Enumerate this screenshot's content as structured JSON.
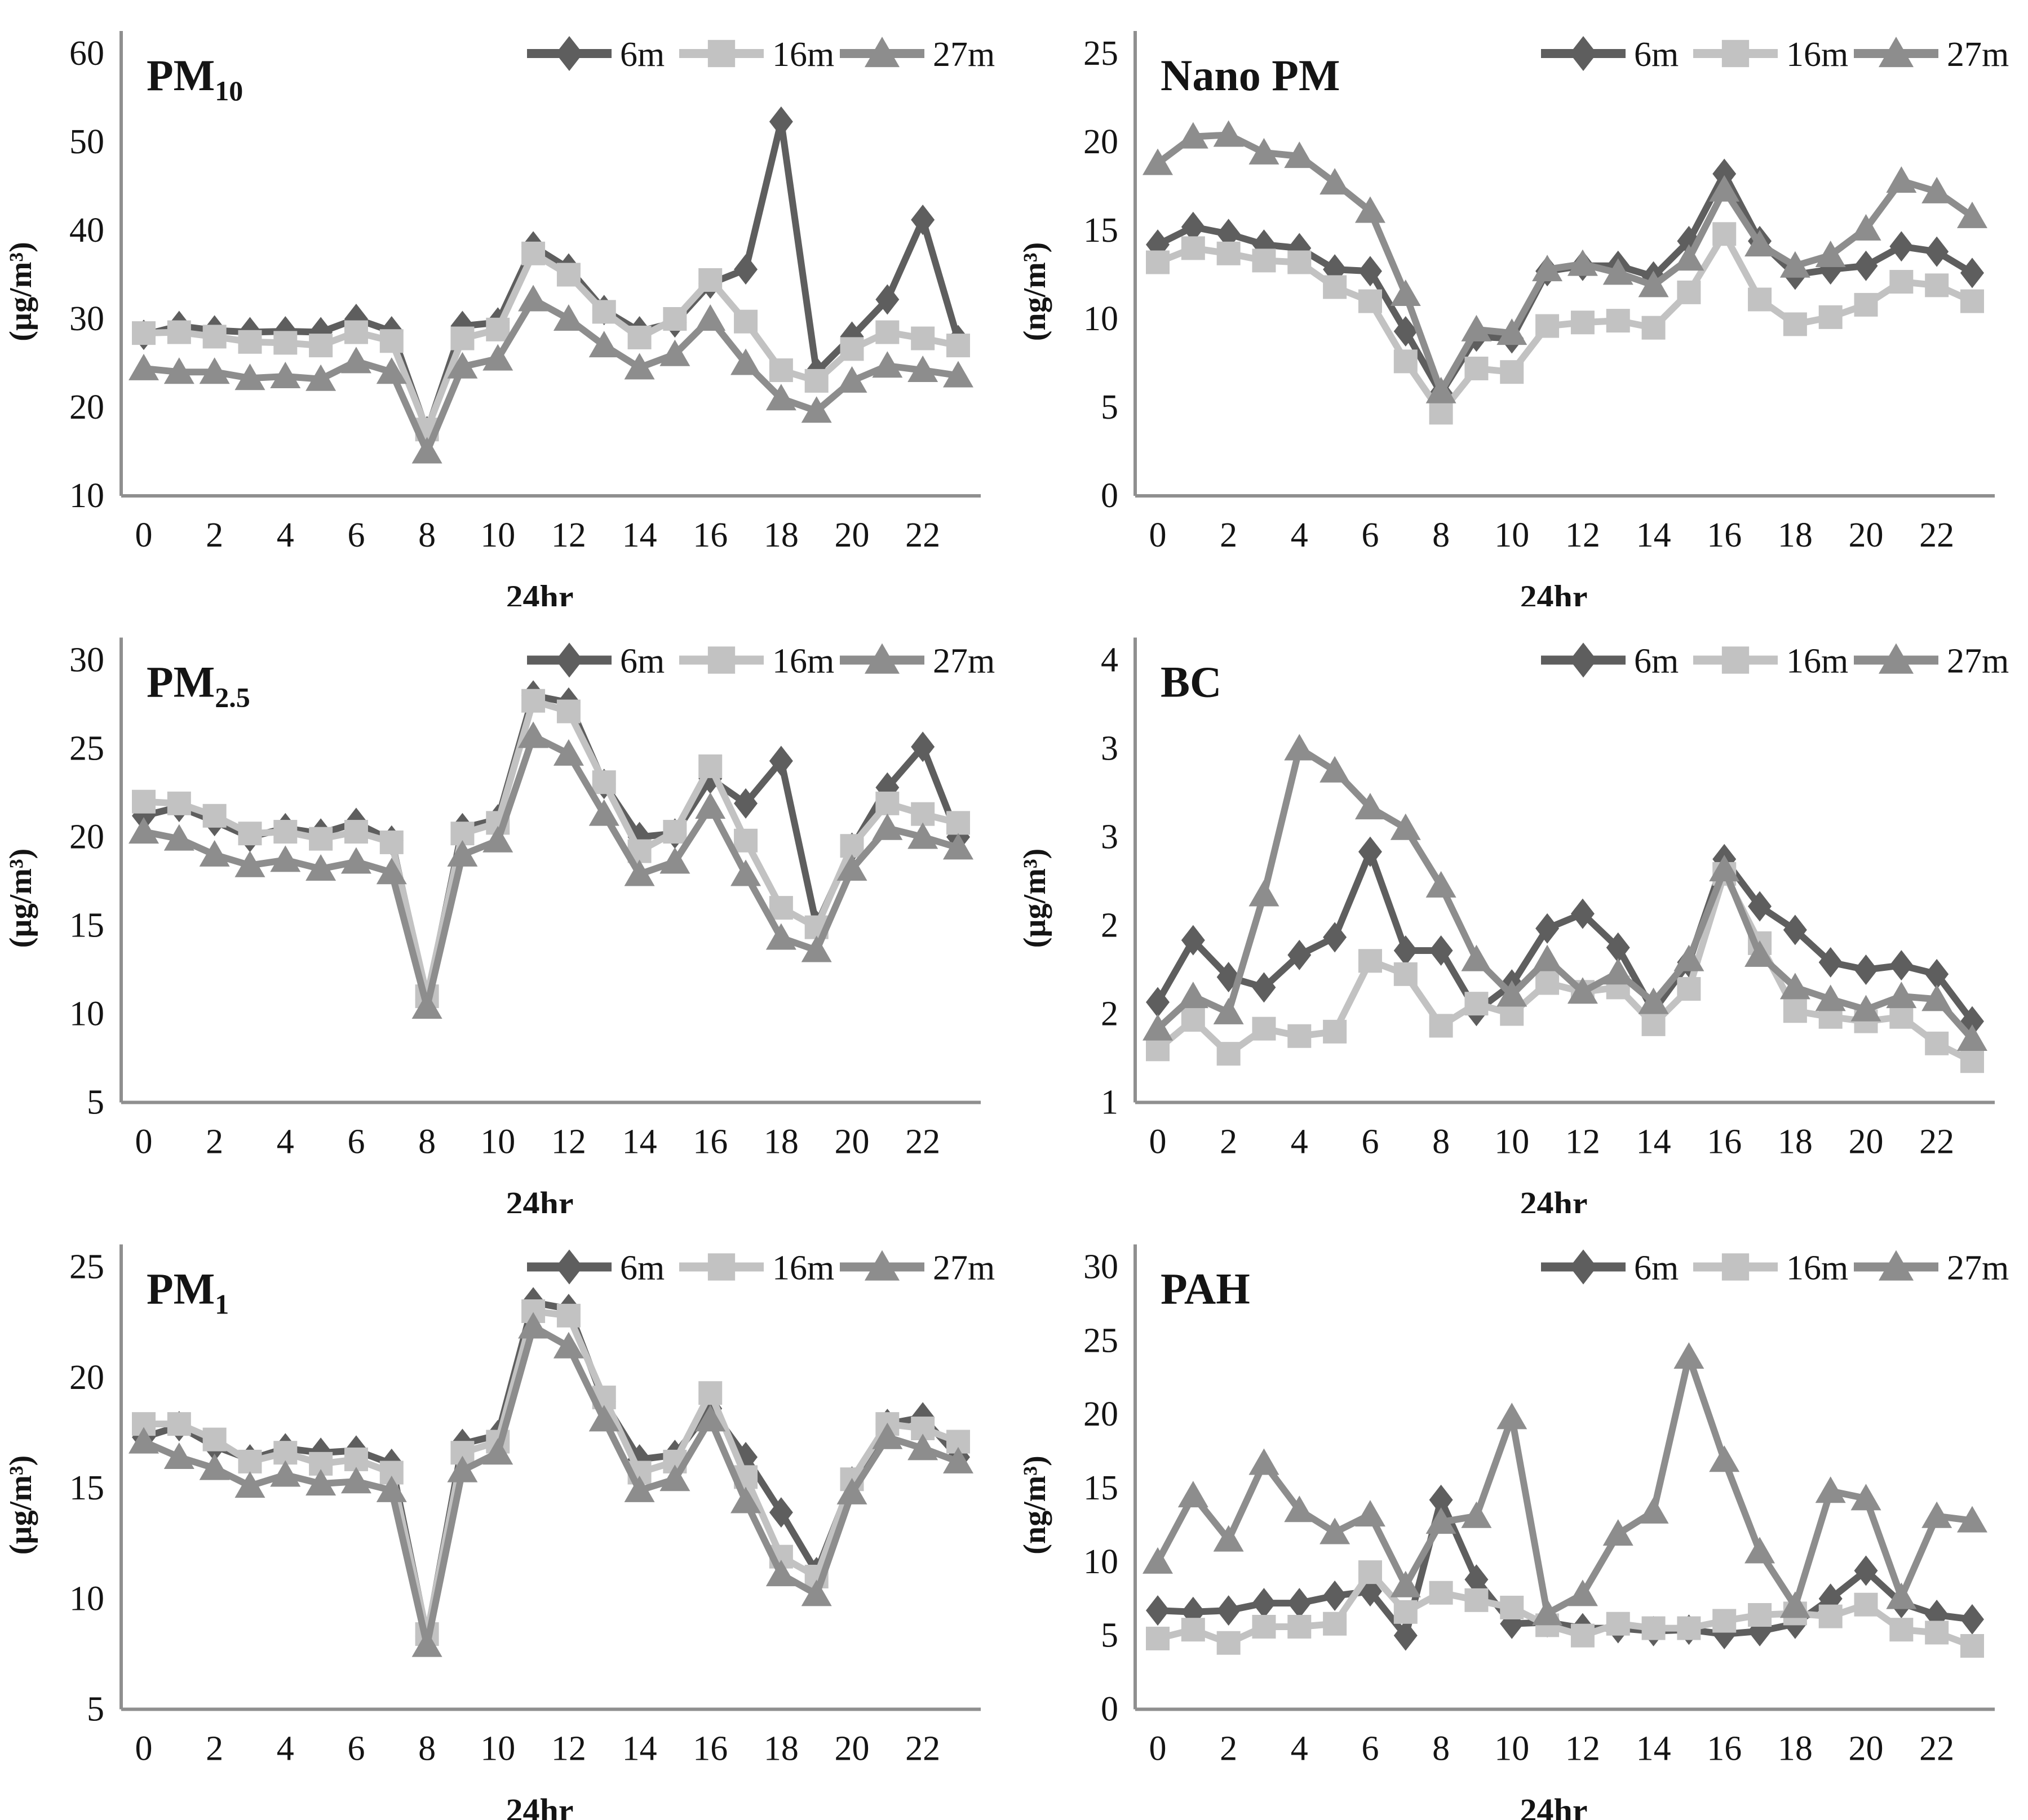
{
  "figure": {
    "background": "#ffffff",
    "axis_color": "#8f8f8f",
    "text_color": "#141414",
    "series_colors": {
      "6m": "#5e5e5e",
      "16m": "#c2c2c2",
      "27m": "#8d8d8d"
    }
  },
  "chart_data": [
    {
      "type": "line",
      "title": "PM",
      "title_sub": "10",
      "ylabel": "(µg/m³)",
      "xlabel": "24hr",
      "ylim": [
        10,
        60
      ],
      "grid": false,
      "legend_position": "top-right",
      "yticks": [
        {
          "v": 60,
          "t": "60"
        },
        {
          "v": 50,
          "t": "50"
        },
        {
          "v": 40,
          "t": "40"
        },
        {
          "v": 30,
          "t": "30"
        },
        {
          "v": 20,
          "t": "20"
        },
        {
          "v": 10,
          "t": "10"
        }
      ],
      "xticks": [
        0,
        2,
        4,
        6,
        8,
        10,
        12,
        14,
        16,
        18,
        20,
        22
      ],
      "x": [
        0,
        1,
        2,
        3,
        4,
        5,
        6,
        7,
        8,
        9,
        10,
        11,
        12,
        13,
        14,
        15,
        16,
        17,
        18,
        19,
        20,
        21,
        22,
        23
      ],
      "series": [
        {
          "name": "6m",
          "marker": "diamond",
          "color": "#5e5e5e",
          "values": [
            28.2,
            29.2,
            28.7,
            28.5,
            28.6,
            28.5,
            30.0,
            28.6,
            17.3,
            29.2,
            29.6,
            38.2,
            35.7,
            31.0,
            28.6,
            29.6,
            34.0,
            35.6,
            52.3,
            24.0,
            28.0,
            32.2,
            41.2,
            27.6
          ]
        },
        {
          "name": "16m",
          "marker": "square",
          "color": "#c2c2c2",
          "values": [
            28.4,
            28.5,
            28.0,
            27.4,
            27.3,
            27.0,
            28.5,
            27.5,
            17.5,
            27.8,
            28.8,
            37.4,
            35.0,
            30.8,
            27.9,
            30.0,
            34.4,
            29.7,
            24.2,
            23.0,
            26.6,
            28.5,
            27.8,
            27.0
          ]
        },
        {
          "name": "27m",
          "marker": "triangle",
          "color": "#8d8d8d",
          "values": [
            24.4,
            24.0,
            24.0,
            23.3,
            23.5,
            23.2,
            25.2,
            24.0,
            15.0,
            24.6,
            25.5,
            32.2,
            30.0,
            27.0,
            24.5,
            26.0,
            30.0,
            25.0,
            21.0,
            19.6,
            23.0,
            24.7,
            24.2,
            23.6
          ]
        }
      ]
    },
    {
      "type": "line",
      "title": "Nano PM",
      "title_sub": "",
      "ylabel": "(ng/m³)",
      "xlabel": "24hr",
      "ylim": [
        0,
        25
      ],
      "grid": false,
      "legend_position": "top-right",
      "yticks": [
        {
          "v": 25,
          "t": "25"
        },
        {
          "v": 20,
          "t": "20"
        },
        {
          "v": 15,
          "t": "15"
        },
        {
          "v": 10,
          "t": "10"
        },
        {
          "v": 5,
          "t": "5"
        },
        {
          "v": 0,
          "t": "0"
        }
      ],
      "xticks": [
        0,
        2,
        4,
        6,
        8,
        10,
        12,
        14,
        16,
        18,
        20,
        22
      ],
      "x": [
        0,
        1,
        2,
        3,
        4,
        5,
        6,
        7,
        8,
        9,
        10,
        11,
        12,
        13,
        14,
        15,
        16,
        17,
        18,
        19,
        20,
        21,
        22,
        23
      ],
      "series": [
        {
          "name": "6m",
          "marker": "diamond",
          "color": "#5e5e5e",
          "values": [
            14.2,
            15.2,
            14.8,
            14.2,
            14.0,
            12.8,
            12.7,
            9.3,
            5.8,
            9.0,
            8.9,
            12.7,
            13.0,
            13.0,
            12.4,
            14.4,
            18.2,
            14.4,
            12.5,
            12.8,
            13.0,
            14.1,
            13.8,
            12.6
          ]
        },
        {
          "name": "16m",
          "marker": "square",
          "color": "#c2c2c2",
          "values": [
            13.2,
            14.0,
            13.7,
            13.3,
            13.2,
            11.8,
            11.0,
            7.6,
            4.7,
            7.2,
            7.0,
            9.6,
            9.8,
            9.9,
            9.5,
            11.5,
            14.8,
            11.1,
            9.7,
            10.1,
            10.8,
            12.1,
            11.9,
            11.0
          ]
        },
        {
          "name": "27m",
          "marker": "triangle",
          "color": "#8d8d8d",
          "values": [
            18.8,
            20.3,
            20.4,
            19.4,
            19.2,
            17.7,
            16.1,
            11.4,
            5.9,
            9.4,
            9.2,
            12.8,
            13.1,
            12.6,
            11.9,
            13.4,
            17.3,
            14.2,
            13.0,
            13.6,
            15.1,
            17.8,
            17.2,
            15.8
          ]
        }
      ]
    },
    {
      "type": "line",
      "title": "PM",
      "title_sub": "2.5",
      "ylabel": "(µg/m³)",
      "xlabel": "24hr",
      "ylim": [
        5,
        30
      ],
      "grid": false,
      "legend_position": "top-right",
      "yticks": [
        {
          "v": 30,
          "t": "30"
        },
        {
          "v": 25,
          "t": "25"
        },
        {
          "v": 20,
          "t": "20"
        },
        {
          "v": 15,
          "t": "15"
        },
        {
          "v": 10,
          "t": "10"
        },
        {
          "v": 5,
          "t": "5"
        }
      ],
      "xticks": [
        0,
        2,
        4,
        6,
        8,
        10,
        12,
        14,
        16,
        18,
        20,
        22
      ],
      "x": [
        0,
        1,
        2,
        3,
        4,
        5,
        6,
        7,
        8,
        9,
        10,
        11,
        12,
        13,
        14,
        15,
        16,
        17,
        18,
        19,
        20,
        21,
        22,
        23
      ],
      "series": [
        {
          "name": "6m",
          "marker": "diamond",
          "color": "#5e5e5e",
          "values": [
            21.2,
            21.7,
            20.9,
            20.0,
            20.5,
            20.2,
            20.8,
            19.8,
            10.8,
            20.5,
            21.0,
            28.0,
            27.6,
            23.0,
            20.0,
            20.2,
            23.3,
            21.9,
            24.3,
            15.0,
            19.4,
            22.8,
            25.1,
            20.0
          ]
        },
        {
          "name": "16m",
          "marker": "square",
          "color": "#c2c2c2",
          "values": [
            22.0,
            21.9,
            21.2,
            20.2,
            20.3,
            19.9,
            20.3,
            19.7,
            11.0,
            20.2,
            20.8,
            27.7,
            27.1,
            23.1,
            19.2,
            20.3,
            24.0,
            19.8,
            16.0,
            14.9,
            19.5,
            21.9,
            21.3,
            20.8
          ]
        },
        {
          "name": "27m",
          "marker": "triangle",
          "color": "#8d8d8d",
          "values": [
            20.3,
            19.9,
            19.0,
            18.4,
            18.7,
            18.2,
            18.6,
            18.0,
            10.4,
            19.0,
            19.8,
            25.7,
            24.7,
            21.3,
            17.9,
            18.6,
            21.7,
            17.9,
            14.3,
            13.6,
            18.2,
            20.5,
            20.0,
            19.4
          ]
        }
      ]
    },
    {
      "type": "line",
      "title": "BC",
      "title_sub": "",
      "ylabel": "(µg/m³)",
      "xlabel": "24hr",
      "ylim": [
        1,
        4
      ],
      "grid": false,
      "legend_position": "top-right",
      "yticks": [
        {
          "v": 4,
          "t": "4"
        },
        {
          "v": 3.4,
          "t": "3"
        },
        {
          "v": 2.8,
          "t": "3"
        },
        {
          "v": 2.2,
          "t": "2"
        },
        {
          "v": 1.6,
          "t": "2"
        },
        {
          "v": 1,
          "t": "1"
        }
      ],
      "xticks": [
        0,
        2,
        4,
        6,
        8,
        10,
        12,
        14,
        16,
        18,
        20,
        22
      ],
      "x": [
        0,
        1,
        2,
        3,
        4,
        5,
        6,
        7,
        8,
        9,
        10,
        11,
        12,
        13,
        14,
        15,
        16,
        17,
        18,
        19,
        20,
        21,
        22,
        23
      ],
      "series": [
        {
          "name": "6m",
          "marker": "diamond",
          "color": "#5e5e5e",
          "values": [
            1.68,
            2.1,
            1.85,
            1.78,
            2.0,
            2.12,
            2.7,
            2.03,
            2.03,
            1.62,
            1.8,
            2.18,
            2.28,
            2.05,
            1.62,
            1.95,
            2.65,
            2.33,
            2.17,
            1.95,
            1.9,
            1.93,
            1.87,
            1.55
          ]
        },
        {
          "name": "16m",
          "marker": "square",
          "color": "#c2c2c2",
          "values": [
            1.36,
            1.56,
            1.33,
            1.5,
            1.45,
            1.48,
            1.96,
            1.87,
            1.52,
            1.67,
            1.6,
            1.81,
            1.75,
            1.78,
            1.53,
            1.77,
            2.55,
            2.08,
            1.62,
            1.58,
            1.55,
            1.58,
            1.4,
            1.28
          ]
        },
        {
          "name": "27m",
          "marker": "triangle",
          "color": "#8d8d8d",
          "values": [
            1.5,
            1.72,
            1.61,
            2.41,
            3.4,
            3.25,
            3.0,
            2.86,
            2.47,
            1.97,
            1.73,
            1.97,
            1.75,
            1.88,
            1.68,
            1.97,
            2.58,
            2.0,
            1.78,
            1.7,
            1.63,
            1.72,
            1.7,
            1.43
          ]
        }
      ]
    },
    {
      "type": "line",
      "title": "PM",
      "title_sub": "1",
      "ylabel": "(µg/m³)",
      "xlabel": "24hr",
      "ylim": [
        5,
        25
      ],
      "grid": false,
      "legend_position": "top-right",
      "yticks": [
        {
          "v": 25,
          "t": "25"
        },
        {
          "v": 20,
          "t": "20"
        },
        {
          "v": 15,
          "t": "15"
        },
        {
          "v": 10,
          "t": "10"
        },
        {
          "v": 5,
          "t": "5"
        }
      ],
      "xticks": [
        0,
        2,
        4,
        6,
        8,
        10,
        12,
        14,
        16,
        18,
        20,
        22
      ],
      "x": [
        0,
        1,
        2,
        3,
        4,
        5,
        6,
        7,
        8,
        9,
        10,
        11,
        12,
        13,
        14,
        15,
        16,
        17,
        18,
        19,
        20,
        21,
        22,
        23
      ],
      "series": [
        {
          "name": "6m",
          "marker": "diamond",
          "color": "#5e5e5e",
          "values": [
            17.3,
            17.8,
            16.9,
            16.3,
            16.8,
            16.6,
            16.7,
            16.1,
            8.3,
            17.0,
            17.4,
            23.4,
            23.1,
            18.9,
            16.3,
            16.5,
            18.6,
            16.4,
            13.9,
            11.2,
            15.3,
            17.9,
            18.2,
            16.4
          ]
        },
        {
          "name": "16m",
          "marker": "square",
          "color": "#c2c2c2",
          "values": [
            17.9,
            17.9,
            17.2,
            16.2,
            16.6,
            16.1,
            16.3,
            15.7,
            8.4,
            16.6,
            17.1,
            23.0,
            22.8,
            19.1,
            15.7,
            16.2,
            19.3,
            15.5,
            11.9,
            11.0,
            15.4,
            17.9,
            17.7,
            17.1
          ]
        },
        {
          "name": "27m",
          "marker": "triangle",
          "color": "#8d8d8d",
          "values": [
            17.1,
            16.4,
            15.9,
            15.1,
            15.6,
            15.2,
            15.3,
            14.9,
            7.9,
            15.8,
            16.6,
            22.3,
            21.4,
            18.1,
            14.9,
            15.4,
            18.1,
            14.4,
            11.1,
            10.2,
            14.8,
            17.3,
            16.8,
            16.2
          ]
        }
      ]
    },
    {
      "type": "line",
      "title": "PAH",
      "title_sub": "",
      "ylabel": "(ng/m³)",
      "xlabel": "24hr",
      "ylim": [
        0,
        30
      ],
      "grid": false,
      "legend_position": "top-right",
      "yticks": [
        {
          "v": 30,
          "t": "30"
        },
        {
          "v": 25,
          "t": "25"
        },
        {
          "v": 20,
          "t": "20"
        },
        {
          "v": 15,
          "t": "15"
        },
        {
          "v": 10,
          "t": "10"
        },
        {
          "v": 5,
          "t": "5"
        },
        {
          "v": 0,
          "t": "0"
        }
      ],
      "xticks": [
        0,
        2,
        4,
        6,
        8,
        10,
        12,
        14,
        16,
        18,
        20,
        22
      ],
      "x": [
        0,
        1,
        2,
        3,
        4,
        5,
        6,
        7,
        8,
        9,
        10,
        11,
        12,
        13,
        14,
        15,
        16,
        17,
        18,
        19,
        20,
        21,
        22,
        23
      ],
      "series": [
        {
          "name": "6m",
          "marker": "diamond",
          "color": "#5e5e5e",
          "values": [
            6.7,
            6.6,
            6.7,
            7.2,
            7.2,
            7.7,
            8.0,
            5.0,
            14.2,
            8.8,
            5.8,
            5.9,
            5.5,
            5.5,
            5.3,
            5.4,
            5.1,
            5.3,
            5.8,
            7.5,
            9.4,
            7.2,
            6.4,
            6.1
          ]
        },
        {
          "name": "16m",
          "marker": "square",
          "color": "#c2c2c2",
          "values": [
            4.8,
            5.4,
            4.5,
            5.6,
            5.6,
            5.8,
            9.3,
            6.6,
            7.9,
            7.4,
            6.9,
            5.7,
            5.0,
            5.8,
            5.5,
            5.5,
            6.0,
            6.4,
            6.5,
            6.3,
            7.1,
            5.4,
            5.2,
            4.3
          ]
        },
        {
          "name": "27m",
          "marker": "triangle",
          "color": "#8d8d8d",
          "values": [
            10.0,
            14.5,
            11.5,
            16.7,
            13.5,
            12.0,
            13.2,
            8.4,
            12.7,
            13.1,
            19.8,
            6.5,
            7.8,
            11.9,
            13.4,
            23.9,
            16.9,
            10.7,
            7.0,
            14.8,
            14.3,
            7.6,
            13.1,
            12.8
          ]
        }
      ]
    }
  ]
}
